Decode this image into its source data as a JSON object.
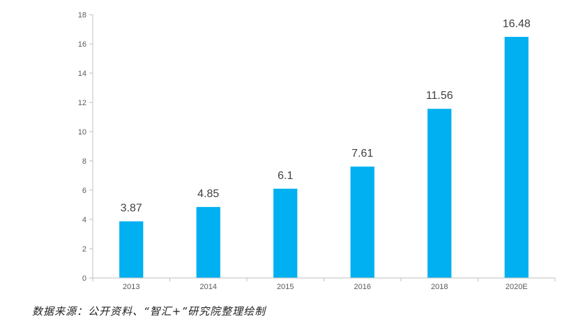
{
  "chart_data": {
    "type": "bar",
    "categories": [
      "2013",
      "2014",
      "2015",
      "2016",
      "2018",
      "2020E"
    ],
    "values": [
      3.87,
      4.85,
      6.1,
      7.61,
      11.56,
      16.48
    ],
    "data_labels": [
      "3.87",
      "4.85",
      "6.1",
      "7.61",
      "11.56",
      "16.48"
    ],
    "y_ticks": [
      "0",
      "2",
      "4",
      "6",
      "8",
      "10",
      "12",
      "14",
      "16",
      "18"
    ],
    "ylim": [
      0,
      18
    ],
    "grid": false,
    "legend": "none",
    "bar_color": "#00B0F0",
    "axis_color": "#BFBFBF"
  },
  "source_note": "数据来源：公开资料、“智汇+”研究院整理绘制"
}
